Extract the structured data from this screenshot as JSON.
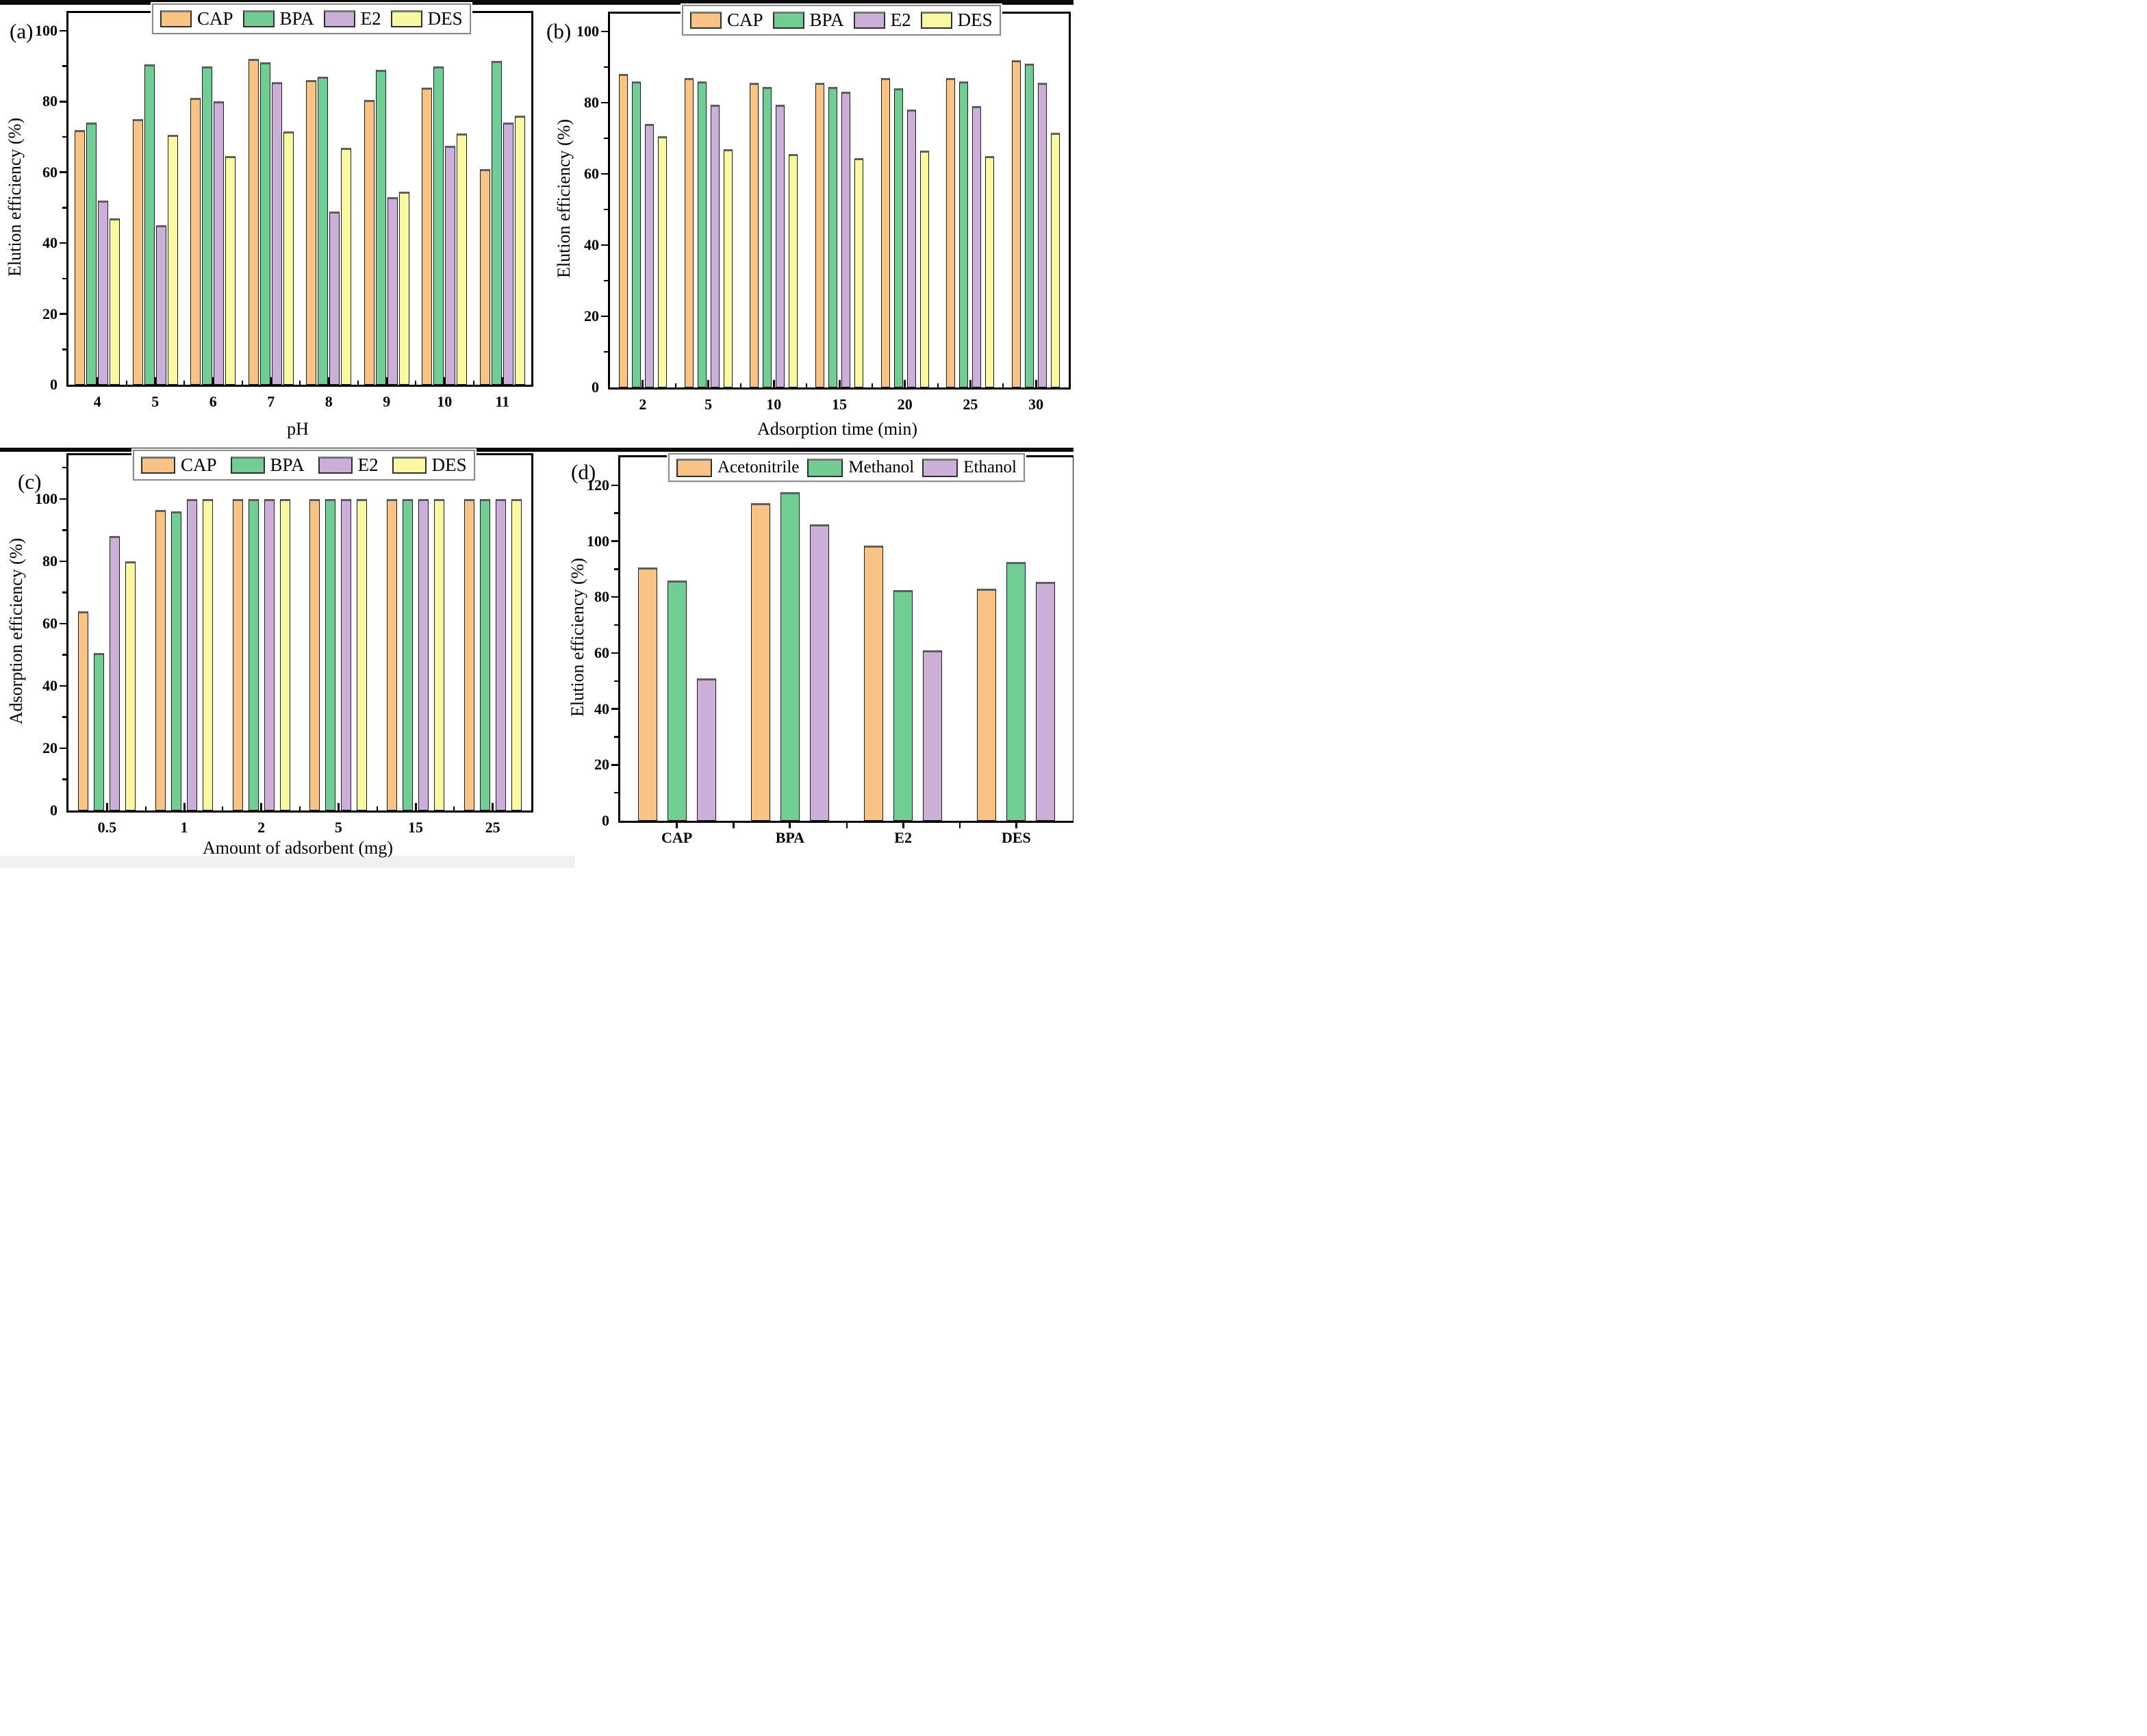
{
  "colors": {
    "cap_orange": "#F9C383",
    "bpa_green": "#70CE95",
    "e2_purple": "#CBAFD9",
    "des_yellow": "#FAF8A0",
    "bar_outline": "#1c1c1c",
    "axis_black": "#000000"
  },
  "chart_data": [
    {
      "panel": "a",
      "panel_label": "(a)",
      "type": "bar",
      "title": "",
      "xlabel": "pH",
      "ylabel": "Elution efficiency (%)",
      "categories": [
        "4",
        "5",
        "6",
        "7",
        "8",
        "9",
        "10",
        "11"
      ],
      "series": [
        {
          "name": "CAP",
          "color": "#F9C383",
          "values": [
            72,
            75,
            81,
            92,
            86,
            80.5,
            84,
            61
          ]
        },
        {
          "name": "BPA",
          "color": "#70CE95",
          "values": [
            74,
            90.5,
            90,
            91,
            87,
            89,
            90,
            91.5
          ]
        },
        {
          "name": "E2",
          "color": "#CBAFD9",
          "values": [
            52,
            45,
            80,
            85.5,
            49,
            53,
            67.5,
            74
          ]
        },
        {
          "name": "DES",
          "color": "#FAF8A0",
          "values": [
            47,
            70.5,
            64.5,
            71.5,
            67,
            54.5,
            71,
            76
          ]
        }
      ],
      "ylim": [
        0,
        105
      ],
      "yticks": [
        0,
        20,
        40,
        60,
        80,
        100
      ],
      "ytick_minor_step": 10,
      "legend_position": "top-center",
      "grid": false
    },
    {
      "panel": "b",
      "panel_label": "(b)",
      "type": "bar",
      "title": "",
      "xlabel": "Adsorption time (min)",
      "ylabel": "Elution efficiency (%)",
      "categories": [
        "2",
        "5",
        "10",
        "15",
        "20",
        "25",
        "30"
      ],
      "series": [
        {
          "name": "CAP",
          "color": "#F9C383",
          "values": [
            88,
            87,
            85.5,
            85.5,
            87,
            87,
            92
          ]
        },
        {
          "name": "BPA",
          "color": "#70CE95",
          "values": [
            86,
            86,
            84.5,
            84.5,
            84,
            86,
            91
          ]
        },
        {
          "name": "E2",
          "color": "#CBAFD9",
          "values": [
            74,
            79.5,
            79.5,
            83,
            78,
            79,
            85.5
          ]
        },
        {
          "name": "DES",
          "color": "#FAF8A0",
          "values": [
            70.5,
            67,
            65.5,
            64.5,
            66.5,
            65,
            71.5
          ]
        }
      ],
      "ylim": [
        0,
        105
      ],
      "yticks": [
        0,
        20,
        40,
        60,
        80,
        100
      ],
      "ytick_minor_step": 10,
      "legend_position": "top-center",
      "grid": false
    },
    {
      "panel": "c",
      "panel_label": "(c)",
      "type": "bar",
      "title": "",
      "xlabel": "Amount of adsorbent (mg)",
      "ylabel": "Adsorption efficiency (%)",
      "categories": [
        "0.5",
        "1",
        "2",
        "5",
        "15",
        "25"
      ],
      "series": [
        {
          "name": "CAP",
          "color": "#F9C383",
          "values": [
            64,
            96.5,
            100,
            100,
            100,
            100
          ]
        },
        {
          "name": "BPA",
          "color": "#70CE95",
          "values": [
            50.5,
            96,
            100,
            100,
            100,
            100
          ]
        },
        {
          "name": "E2",
          "color": "#CBAFD9",
          "values": [
            88,
            100,
            100,
            100,
            100,
            100
          ]
        },
        {
          "name": "DES",
          "color": "#FAF8A0",
          "values": [
            80,
            100,
            100,
            100,
            100,
            100
          ]
        }
      ],
      "ylim": [
        0,
        114
      ],
      "yticks": [
        0,
        20,
        40,
        60,
        80,
        100
      ],
      "ytick_minor_step": 10,
      "legend_position": "top-center",
      "grid": false
    },
    {
      "panel": "d",
      "panel_label": "(d)",
      "type": "bar",
      "title": "",
      "xlabel": "",
      "ylabel": "Elution efficiency (%)",
      "categories": [
        "CAP",
        "BPA",
        "E2",
        "DES"
      ],
      "series": [
        {
          "name": "Acetonitrile",
          "color": "#F9C383",
          "values": [
            90.5,
            113.5,
            98.5,
            83
          ]
        },
        {
          "name": "Methanol",
          "color": "#70CE95",
          "values": [
            86,
            117.5,
            82.5,
            92.5
          ]
        },
        {
          "name": "Ethanol",
          "color": "#CBAFD9",
          "values": [
            51,
            106,
            61,
            85.5
          ]
        }
      ],
      "ylim": [
        0,
        130
      ],
      "yticks": [
        0,
        20,
        40,
        60,
        80,
        100,
        120
      ],
      "ytick_minor_step": 10,
      "legend_position": "top-center",
      "grid": false
    }
  ]
}
